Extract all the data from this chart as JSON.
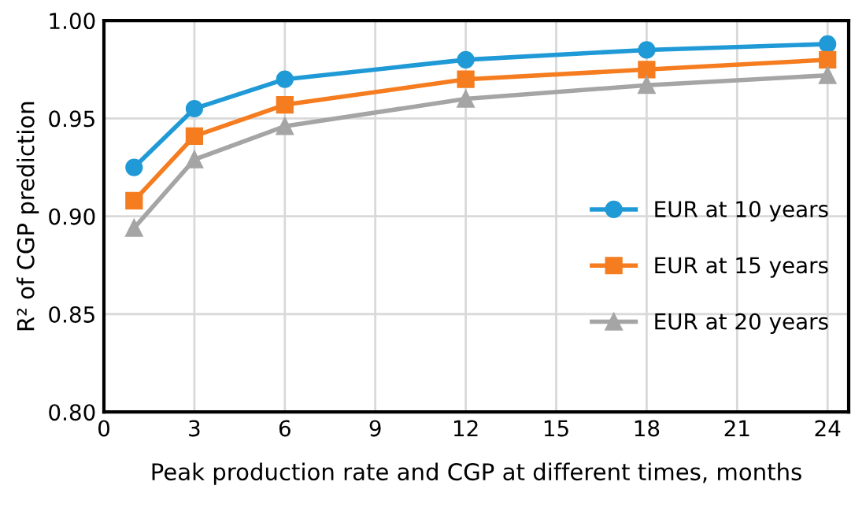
{
  "chart_data": {
    "type": "line",
    "xlabel": "Peak production rate and CGP at different times, months",
    "ylabel": "R² of CGP prediction",
    "x": [
      1,
      3,
      6,
      12,
      18,
      24
    ],
    "series": [
      {
        "name": "EUR at 10 years",
        "color": "#1f9ad6",
        "marker": "circle",
        "values": [
          0.925,
          0.955,
          0.97,
          0.98,
          0.985,
          0.988
        ]
      },
      {
        "name": "EUR at 15 years",
        "color": "#f57c1f",
        "marker": "square",
        "values": [
          0.908,
          0.941,
          0.957,
          0.97,
          0.975,
          0.98
        ]
      },
      {
        "name": "EUR at 20 years",
        "color": "#a5a5a5",
        "marker": "triangle",
        "values": [
          0.894,
          0.929,
          0.946,
          0.96,
          0.967,
          0.972
        ]
      }
    ],
    "xlim": [
      0,
      24.7
    ],
    "xticks": [
      0,
      3,
      6,
      9,
      12,
      15,
      18,
      21,
      24
    ],
    "ylim": [
      0.8,
      1.0
    ],
    "yticks": [
      {
        "value": 0.8,
        "label": "0.80"
      },
      {
        "value": 0.85,
        "label": "0.85"
      },
      {
        "value": 0.9,
        "label": "0.90"
      },
      {
        "value": 0.95,
        "label": "0.95"
      },
      {
        "value": 1.0,
        "label": "1.00"
      }
    ],
    "grid": true,
    "legend": "right",
    "line_style": "solid"
  }
}
